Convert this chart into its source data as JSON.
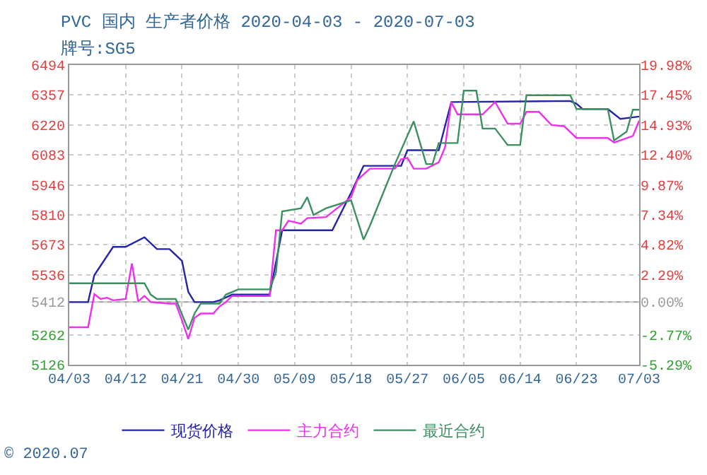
{
  "chart_data": {
    "type": "line",
    "title": "PVC 国内 生产者价格 2020-04-03 - 2020-07-03",
    "subtitle": "牌号:SG5",
    "annotations": [
      "© 2020.07"
    ],
    "ylim": [
      5126,
      6494
    ],
    "yticks": [
      5126,
      5262,
      5412,
      5536,
      5673,
      5810,
      5946,
      6083,
      6220,
      6357,
      6494
    ],
    "y2lim": [
      -5.29,
      19.98
    ],
    "y2ticks": [
      {
        "value": -5.29,
        "label": "-5.29%"
      },
      {
        "value": -2.77,
        "label": "-2.77%"
      },
      {
        "value": 0,
        "label": "0.00%"
      },
      {
        "value": 2.29,
        "label": "2.29%"
      },
      {
        "value": 4.82,
        "label": "4.82%"
      },
      {
        "value": 7.34,
        "label": "7.34%"
      },
      {
        "value": 9.87,
        "label": "9.87%"
      },
      {
        "value": 12.4,
        "label": "12.40%"
      },
      {
        "value": 14.93,
        "label": "14.93%"
      },
      {
        "value": 17.45,
        "label": "17.45%"
      },
      {
        "value": 19.98,
        "label": "19.98%"
      }
    ],
    "xlim": [
      "2020-04-03",
      "2020-07-03"
    ],
    "xticks": [
      {
        "value": "2020-04-03",
        "label": "04/03"
      },
      {
        "value": "2020-04-12",
        "label": "04/12"
      },
      {
        "value": "2020-04-21",
        "label": "04/21"
      },
      {
        "value": "2020-04-30",
        "label": "04/30"
      },
      {
        "value": "2020-05-09",
        "label": "05/09"
      },
      {
        "value": "2020-05-18",
        "label": "05/18"
      },
      {
        "value": "2020-05-27",
        "label": "05/27"
      },
      {
        "value": "2020-06-05",
        "label": "06/05"
      },
      {
        "value": "2020-06-14",
        "label": "06/14"
      },
      {
        "value": "2020-06-23",
        "label": "06/23"
      },
      {
        "value": "2020-07-03",
        "label": "07/03"
      }
    ],
    "ref_lines": [
      {
        "axis": "y2",
        "value": 0,
        "color": "#a0a0a0"
      }
    ],
    "grid": true,
    "legend": "bottom",
    "marker": "none",
    "line_style": "solid",
    "series": [
      {
        "name": "现货价格",
        "color": "#2424a8",
        "x": [
          "2020-04-03",
          "2020-04-06",
          "2020-04-07",
          "2020-04-10",
          "2020-04-12",
          "2020-04-15",
          "2020-04-17",
          "2020-04-19",
          "2020-04-21",
          "2020-04-22",
          "2020-04-23",
          "2020-04-26",
          "2020-04-27",
          "2020-04-29",
          "2020-05-05",
          "2020-05-07",
          "2020-05-15",
          "2020-05-18",
          "2020-05-20",
          "2020-05-26",
          "2020-05-27",
          "2020-06-01",
          "2020-06-03",
          "2020-06-22",
          "2020-06-23",
          "2020-06-24",
          "2020-06-28",
          "2020-06-30",
          "2020-07-03"
        ],
        "values": [
          5412,
          5412,
          5535,
          5664,
          5664,
          5708,
          5654,
          5654,
          5600,
          5459,
          5412,
          5412,
          5420,
          5446,
          5446,
          5740,
          5740,
          5911,
          6034,
          6034,
          6105,
          6105,
          6325,
          6330,
          6317,
          6293,
          6293,
          6248,
          6259
        ]
      },
      {
        "name": "主力合约",
        "color": "#ee30ee",
        "x": [
          "2020-04-03",
          "2020-04-06",
          "2020-04-07",
          "2020-04-08",
          "2020-04-09",
          "2020-04-10",
          "2020-04-12",
          "2020-04-13",
          "2020-04-14",
          "2020-04-15",
          "2020-04-16",
          "2020-04-19",
          "2020-04-20",
          "2020-04-21",
          "2020-04-22",
          "2020-04-23",
          "2020-04-24",
          "2020-04-26",
          "2020-04-27",
          "2020-04-28",
          "2020-04-29",
          "2020-05-05",
          "2020-05-06",
          "2020-05-07",
          "2020-05-08",
          "2020-05-10",
          "2020-05-11",
          "2020-05-14",
          "2020-05-18",
          "2020-05-19",
          "2020-05-21",
          "2020-05-25",
          "2020-05-26",
          "2020-05-27",
          "2020-05-28",
          "2020-05-30",
          "2020-06-01",
          "2020-06-02",
          "2020-06-03",
          "2020-06-04",
          "2020-06-08",
          "2020-06-10",
          "2020-06-12",
          "2020-06-14",
          "2020-06-15",
          "2020-06-17",
          "2020-06-19",
          "2020-06-21",
          "2020-06-23",
          "2020-06-28",
          "2020-06-29",
          "2020-07-02",
          "2020-07-03"
        ],
        "values": [
          5297,
          5297,
          5448,
          5426,
          5432,
          5420,
          5426,
          5588,
          5415,
          5440,
          5412,
          5405,
          5405,
          5329,
          5243,
          5340,
          5360,
          5360,
          5392,
          5412,
          5440,
          5440,
          5740,
          5740,
          5783,
          5770,
          5795,
          5800,
          5891,
          5969,
          6021,
          6021,
          6064,
          6070,
          6021,
          6021,
          6050,
          6118,
          6325,
          6269,
          6269,
          6325,
          6226,
          6226,
          6280,
          6280,
          6220,
          6215,
          6161,
          6161,
          6140,
          6170,
          6240
        ]
      },
      {
        "name": "最近合约",
        "color": "#3c9060",
        "x": [
          "2020-04-03",
          "2020-04-15",
          "2020-04-16",
          "2020-04-17",
          "2020-04-20",
          "2020-04-22",
          "2020-04-23",
          "2020-04-24",
          "2020-04-27",
          "2020-04-28",
          "2020-04-30",
          "2020-05-05",
          "2020-05-06",
          "2020-05-07",
          "2020-05-10",
          "2020-05-11",
          "2020-05-12",
          "2020-05-14",
          "2020-05-18",
          "2020-05-20",
          "2020-05-21",
          "2020-05-25",
          "2020-05-28",
          "2020-05-30",
          "2020-05-31",
          "2020-06-01",
          "2020-06-04",
          "2020-06-05",
          "2020-06-07",
          "2020-06-08",
          "2020-06-10",
          "2020-06-12",
          "2020-06-14",
          "2020-06-15",
          "2020-06-22",
          "2020-06-23",
          "2020-06-28",
          "2020-06-29",
          "2020-07-01",
          "2020-07-02",
          "2020-07-03"
        ],
        "values": [
          5498,
          5498,
          5446,
          5426,
          5426,
          5286,
          5360,
          5405,
          5405,
          5446,
          5470,
          5470,
          5546,
          5826,
          5840,
          5891,
          5810,
          5840,
          5877,
          5697,
          5760,
          6042,
          6237,
          6042,
          6042,
          6138,
          6138,
          6377,
          6377,
          6204,
          6204,
          6129,
          6129,
          6356,
          6356,
          6293,
          6293,
          6150,
          6190,
          6290,
          6290
        ]
      }
    ]
  }
}
